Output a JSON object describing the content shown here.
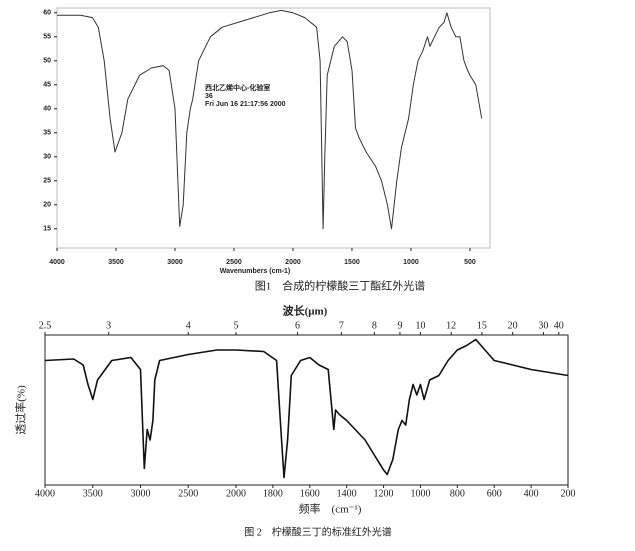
{
  "chart_data": [
    {
      "type": "line",
      "xlabel": "Wavenumbers (cm-1)",
      "caption": "图1　合成的柠檬酸三丁酯红外光谱",
      "annotations": [
        "西北乙烯中心-化验室",
        "36",
        "Fri Jun 16 21:17:56 2000"
      ],
      "xlim": [
        4000,
        330
      ],
      "ylim": [
        11,
        61
      ],
      "xticks": [
        4000,
        3500,
        3000,
        2500,
        2000,
        1500,
        1000,
        500
      ],
      "yticks": [
        15,
        20,
        25,
        30,
        35,
        40,
        45,
        50,
        55,
        60
      ],
      "color": "#333333",
      "x": [
        4000,
        3800,
        3700,
        3650,
        3600,
        3550,
        3508,
        3450,
        3400,
        3300,
        3200,
        3100,
        3050,
        3000,
        2960,
        2930,
        2900,
        2870,
        2850,
        2800,
        2700,
        2600,
        2400,
        2200,
        2100,
        2000,
        1900,
        1800,
        1770,
        1745,
        1730,
        1710,
        1650,
        1580,
        1540,
        1500,
        1470,
        1440,
        1380,
        1300,
        1250,
        1200,
        1165,
        1120,
        1080,
        1050,
        1020,
        980,
        940,
        900,
        860,
        839,
        800,
        760,
        720,
        695,
        660,
        620,
        585,
        550,
        520,
        500,
        450,
        400
      ],
      "values": [
        59.5,
        59.5,
        59,
        57,
        50,
        38,
        31,
        35,
        42,
        47,
        48.5,
        49,
        48,
        40,
        15.5,
        20,
        35,
        40,
        42,
        50,
        55,
        57,
        58.5,
        60,
        60.5,
        60,
        59,
        57,
        50,
        15,
        30,
        47,
        53,
        55,
        54,
        48,
        36,
        34,
        31,
        28,
        25,
        20,
        15,
        25,
        32,
        35,
        38,
        45,
        50,
        52,
        55,
        53,
        55,
        57,
        58,
        60,
        57,
        55,
        55,
        50,
        48,
        47,
        45,
        38
      ]
    },
    {
      "type": "line",
      "ylabel": "透过率(%)",
      "xlabel": "频率　(cm⁻¹)",
      "x2label": "波长(μm)",
      "caption": "图 2　柠檬酸三丁的标准红外光谱",
      "xlim": [
        4000,
        200
      ],
      "xbreak": 2000,
      "ylim": [
        0,
        100
      ],
      "xticks": [
        4000,
        3500,
        3000,
        2500,
        2000,
        1800,
        1600,
        1400,
        1200,
        1000,
        800,
        600,
        400,
        200
      ],
      "x2ticks": [
        2.5,
        3,
        4,
        5,
        6,
        7,
        8,
        9,
        10,
        12,
        15,
        20,
        30,
        40
      ],
      "color": "#111111",
      "x": [
        4000,
        3700,
        3600,
        3550,
        3500,
        3450,
        3300,
        3100,
        3000,
        2960,
        2930,
        2900,
        2870,
        2850,
        2800,
        2500,
        2200,
        2000,
        1850,
        1780,
        1760,
        1740,
        1720,
        1700,
        1650,
        1600,
        1550,
        1500,
        1470,
        1460,
        1440,
        1400,
        1300,
        1250,
        1200,
        1180,
        1150,
        1120,
        1100,
        1080,
        1060,
        1040,
        1020,
        1000,
        980,
        950,
        900,
        850,
        800,
        750,
        700,
        650,
        600,
        500,
        400,
        300,
        200
      ],
      "values": [
        83,
        84,
        80,
        67,
        57,
        70,
        83,
        85,
        77,
        11,
        37,
        30,
        43,
        70,
        83,
        87,
        90,
        90,
        89,
        83,
        43,
        5,
        30,
        73,
        83,
        85,
        80,
        77,
        37,
        50,
        47,
        43,
        30,
        20,
        10,
        7,
        17,
        37,
        43,
        40,
        57,
        67,
        60,
        67,
        57,
        70,
        73,
        83,
        90,
        93,
        97,
        90,
        83,
        80,
        77,
        75,
        73
      ]
    }
  ]
}
